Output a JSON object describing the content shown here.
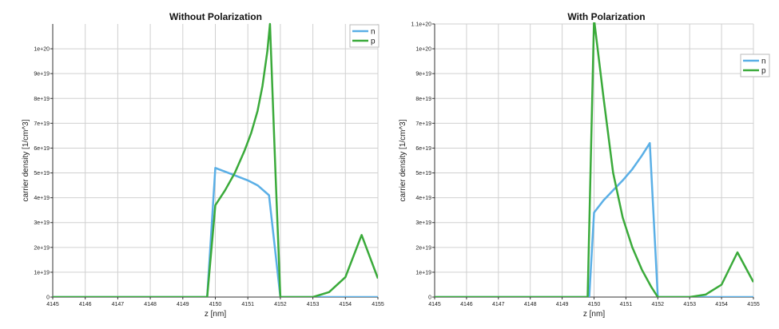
{
  "chart_data": [
    {
      "type": "line",
      "title": "Without Polarization",
      "xlabel": "z [nm]",
      "ylabel": "carrier density [1/cm^3]",
      "xlim": [
        4145,
        4155
      ],
      "ylim": [
        0,
        1.1e+20
      ],
      "x_ticks": [
        4145,
        4146,
        4147,
        4148,
        4149,
        4150,
        4151,
        4152,
        4153,
        4154,
        4155
      ],
      "x_tick_labels": [
        "4145",
        "4146",
        "4147",
        "4148",
        "4149",
        "4150",
        "4151",
        "4152",
        "4153",
        "4154",
        "4155"
      ],
      "y_ticks": [
        0,
        1e+19,
        2e+19,
        3e+19,
        4e+19,
        5e+19,
        6e+19,
        7e+19,
        8e+19,
        9e+19,
        1e+20
      ],
      "y_tick_labels": [
        "0",
        "1e+19",
        "2e+19",
        "3e+19",
        "4e+19",
        "5e+19",
        "6e+19",
        "7e+19",
        "8e+19",
        "9e+19",
        "1e+20"
      ],
      "grid": true,
      "legend": "top-right",
      "series": [
        {
          "name": "n",
          "color": "#5aafe6",
          "points": [
            [
              4145,
              0
            ],
            [
              4149.75,
              0
            ],
            [
              4150,
              5.2e+19
            ],
            [
              4150.5,
              4.95e+19
            ],
            [
              4151,
              4.7e+19
            ],
            [
              4151.3,
              4.5e+19
            ],
            [
              4151.65,
              4.1e+19
            ],
            [
              4152,
              0
            ],
            [
              4155,
              0
            ]
          ]
        },
        {
          "name": "p",
          "color": "#3aaa3a",
          "points": [
            [
              4145,
              0
            ],
            [
              4149.75,
              0
            ],
            [
              4150,
              3.7e+19
            ],
            [
              4150.3,
              4.3e+19
            ],
            [
              4150.6,
              5e+19
            ],
            [
              4150.9,
              5.9e+19
            ],
            [
              4151.1,
              6.6e+19
            ],
            [
              4151.3,
              7.5e+19
            ],
            [
              4151.45,
              8.5e+19
            ],
            [
              4151.6,
              9.9e+19
            ],
            [
              4151.68,
              1.1e+20
            ],
            [
              4151.85,
              5e+19
            ],
            [
              4152,
              0
            ],
            [
              4153,
              0
            ],
            [
              4153.5,
              2e+18
            ],
            [
              4154,
              8e+18
            ],
            [
              4154.5,
              2.5e+19
            ],
            [
              4155,
              7.5e+18
            ]
          ]
        }
      ]
    },
    {
      "type": "line",
      "title": "With Polarization",
      "xlabel": "z [nm]",
      "ylabel": "carrier density [1/cm^3]",
      "xlim": [
        4145,
        4155
      ],
      "ylim": [
        0,
        1.1e+20
      ],
      "x_ticks": [
        4145,
        4146,
        4147,
        4148,
        4149,
        4150,
        4151,
        4152,
        4153,
        4154,
        4155
      ],
      "x_tick_labels": [
        "4145",
        "4146",
        "4147",
        "4148",
        "4149",
        "4150",
        "4151",
        "4152",
        "4153",
        "4154",
        "4155"
      ],
      "y_ticks": [
        0,
        1e+19,
        2e+19,
        3e+19,
        4e+19,
        5e+19,
        6e+19,
        7e+19,
        8e+19,
        9e+19,
        1e+20,
        1.1e+20
      ],
      "y_tick_labels": [
        "0",
        "1e+19",
        "2e+19",
        "3e+19",
        "4e+19",
        "5e+19",
        "6e+19",
        "7e+19",
        "8e+19",
        "9e+19",
        "1e+20",
        "1.1e+20"
      ],
      "grid": true,
      "legend": "right",
      "series": [
        {
          "name": "n",
          "color": "#5aafe6",
          "points": [
            [
              4145,
              0
            ],
            [
              4149.85,
              0
            ],
            [
              4150,
              3.4e+19
            ],
            [
              4150.3,
              3.9e+19
            ],
            [
              4150.6,
              4.3e+19
            ],
            [
              4150.9,
              4.7e+19
            ],
            [
              4151.2,
              5.15e+19
            ],
            [
              4151.5,
              5.7e+19
            ],
            [
              4151.75,
              6.2e+19
            ],
            [
              4152,
              0
            ],
            [
              4155,
              0
            ]
          ]
        },
        {
          "name": "p",
          "color": "#3aaa3a",
          "points": [
            [
              4145,
              0
            ],
            [
              4149.8,
              0
            ],
            [
              4150,
              1.12e+20
            ],
            [
              4150.3,
              8e+19
            ],
            [
              4150.6,
              5e+19
            ],
            [
              4150.9,
              3.2e+19
            ],
            [
              4151.2,
              2e+19
            ],
            [
              4151.5,
              1.1e+19
            ],
            [
              4151.8,
              4e+18
            ],
            [
              4152,
              0
            ],
            [
              4153,
              0
            ],
            [
              4153.5,
              1e+18
            ],
            [
              4154,
              5e+18
            ],
            [
              4154.5,
              1.8e+19
            ],
            [
              4155,
              6e+18
            ]
          ]
        }
      ]
    }
  ]
}
